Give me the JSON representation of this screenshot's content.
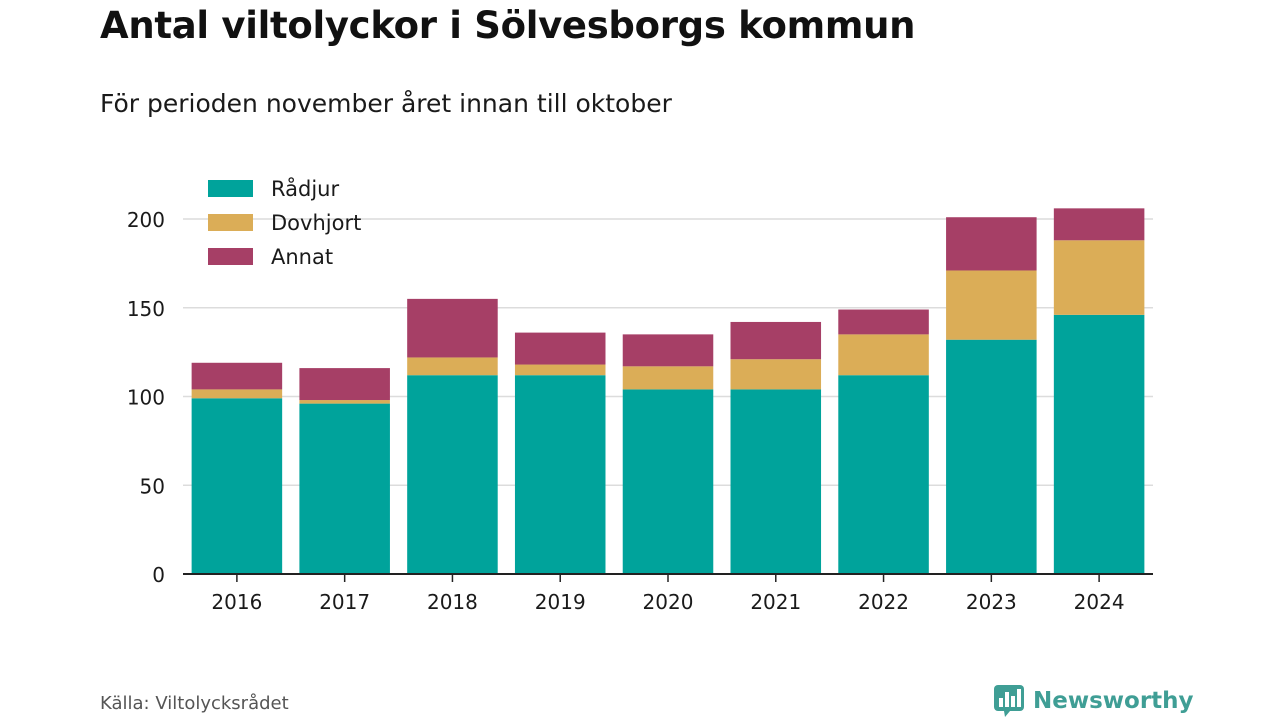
{
  "header": {
    "title": "Antal viltolyckor i Sölvesborgs kommun",
    "subtitle": "För perioden november året innan till oktober"
  },
  "footer": {
    "source": "Källa: Viltolycksrådet",
    "brand": "Newsworthy",
    "brand_color": "#3f9e95",
    "brand_icon": "bar-chart-icon"
  },
  "chart_data": {
    "type": "bar",
    "stacked": true,
    "categories": [
      "2016",
      "2017",
      "2018",
      "2019",
      "2020",
      "2021",
      "2022",
      "2023",
      "2024"
    ],
    "series": [
      {
        "name": "Rådjur",
        "color": "#00a39b",
        "values": [
          99,
          96,
          112,
          112,
          104,
          104,
          112,
          132,
          146
        ]
      },
      {
        "name": "Dovhjort",
        "color": "#dbad57",
        "values": [
          5,
          2,
          10,
          6,
          13,
          17,
          23,
          39,
          42
        ]
      },
      {
        "name": "Annat",
        "color": "#a63f66",
        "values": [
          15,
          18,
          33,
          18,
          18,
          21,
          14,
          30,
          18
        ]
      }
    ],
    "ylim": [
      0,
      200
    ],
    "yticks": [
      0,
      50,
      100,
      150,
      200
    ],
    "grid": true,
    "legend_position": "top-left"
  }
}
